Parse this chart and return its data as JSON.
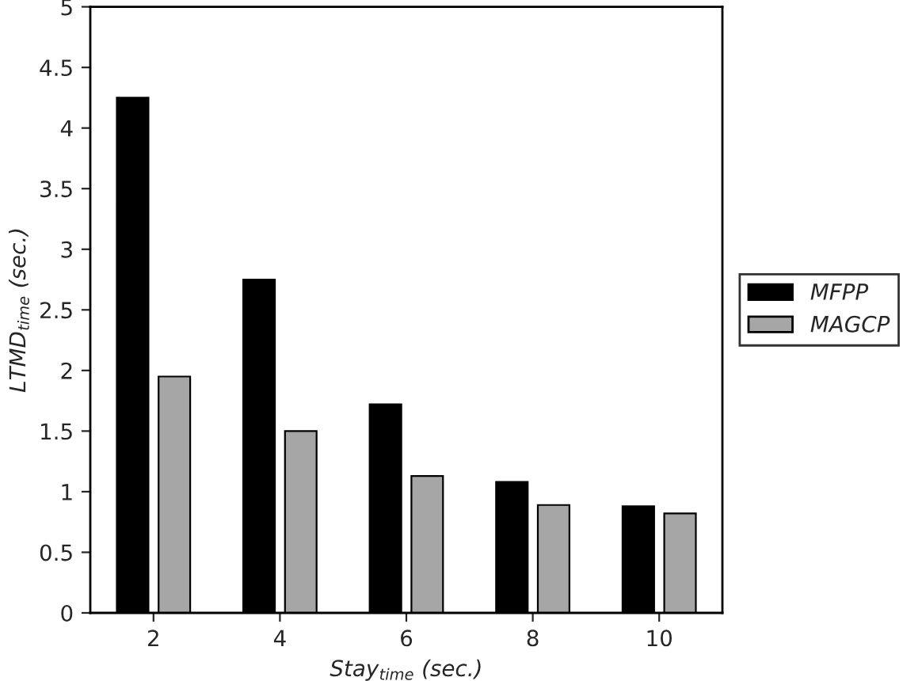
{
  "chart_data": {
    "type": "bar",
    "xlabel": "Stay$_{time}$ (sec.)",
    "ylabel": "LTMD$_{time}$ (sec.)",
    "categories": [
      "2",
      "4",
      "6",
      "8",
      "10"
    ],
    "series": [
      {
        "name": "MFPP",
        "color": "#000000",
        "values": [
          4.25,
          2.75,
          1.72,
          1.08,
          0.88
        ]
      },
      {
        "name": "MAGCP",
        "color": "#a6a6a6",
        "values": [
          1.95,
          1.5,
          1.13,
          0.89,
          0.82
        ]
      }
    ],
    "ylim": [
      0,
      5
    ],
    "yticks": [
      0,
      0.5,
      1,
      1.5,
      2,
      2.5,
      3,
      3.5,
      4,
      4.5,
      5
    ],
    "grid": false,
    "legend": "right"
  }
}
